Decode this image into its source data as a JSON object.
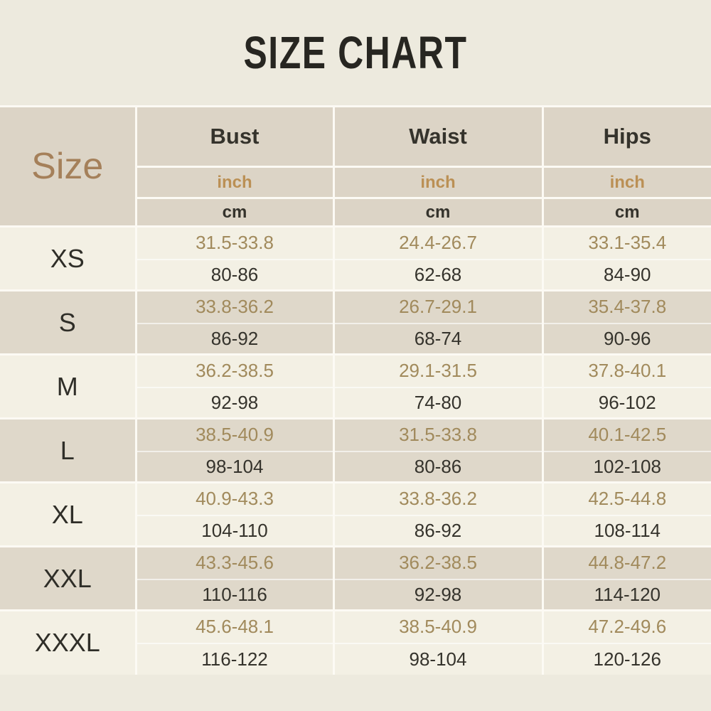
{
  "title": "SIZE CHART",
  "table": {
    "corner_label": "Size",
    "measurements": {
      "bust": "Bust",
      "waist": "Waist",
      "hips": "Hips"
    },
    "units": {
      "inch": "inch",
      "cm": "cm"
    },
    "rows": [
      {
        "size": "XS",
        "bust": {
          "inch": "31.5-33.8",
          "cm": "80-86"
        },
        "waist": {
          "inch": "24.4-26.7",
          "cm": "62-68"
        },
        "hips": {
          "inch": "33.1-35.4",
          "cm": "84-90"
        }
      },
      {
        "size": "S",
        "bust": {
          "inch": "33.8-36.2",
          "cm": "86-92"
        },
        "waist": {
          "inch": "26.7-29.1",
          "cm": "68-74"
        },
        "hips": {
          "inch": "35.4-37.8",
          "cm": "90-96"
        }
      },
      {
        "size": "M",
        "bust": {
          "inch": "36.2-38.5",
          "cm": "92-98"
        },
        "waist": {
          "inch": "29.1-31.5",
          "cm": "74-80"
        },
        "hips": {
          "inch": "37.8-40.1",
          "cm": "96-102"
        }
      },
      {
        "size": "L",
        "bust": {
          "inch": "38.5-40.9",
          "cm": "98-104"
        },
        "waist": {
          "inch": "31.5-33.8",
          "cm": "80-86"
        },
        "hips": {
          "inch": "40.1-42.5",
          "cm": "102-108"
        }
      },
      {
        "size": "XL",
        "bust": {
          "inch": "40.9-43.3",
          "cm": "104-110"
        },
        "waist": {
          "inch": "33.8-36.2",
          "cm": "86-92"
        },
        "hips": {
          "inch": "42.5-44.8",
          "cm": "108-114"
        }
      },
      {
        "size": "XXL",
        "bust": {
          "inch": "43.3-45.6",
          "cm": "110-116"
        },
        "waist": {
          "inch": "36.2-38.5",
          "cm": "92-98"
        },
        "hips": {
          "inch": "44.8-47.2",
          "cm": "114-120"
        }
      },
      {
        "size": "XXXL",
        "bust": {
          "inch": "45.6-48.1",
          "cm": "116-122"
        },
        "waist": {
          "inch": "38.5-40.9",
          "cm": "98-104"
        },
        "hips": {
          "inch": "47.2-49.6",
          "cm": "120-126"
        }
      }
    ]
  },
  "chart_data": {
    "type": "table",
    "title": "SIZE CHART",
    "categories": [
      "XS",
      "S",
      "M",
      "L",
      "XL",
      "XXL",
      "XXXL"
    ],
    "series": [
      {
        "name": "Bust (inch)",
        "values": [
          "31.5-33.8",
          "33.8-36.2",
          "36.2-38.5",
          "38.5-40.9",
          "40.9-43.3",
          "43.3-45.6",
          "45.6-48.1"
        ]
      },
      {
        "name": "Bust (cm)",
        "values": [
          "80-86",
          "86-92",
          "92-98",
          "98-104",
          "104-110",
          "110-116",
          "116-122"
        ]
      },
      {
        "name": "Waist (inch)",
        "values": [
          "24.4-26.7",
          "26.7-29.1",
          "29.1-31.5",
          "31.5-33.8",
          "33.8-36.2",
          "36.2-38.5",
          "38.5-40.9"
        ]
      },
      {
        "name": "Waist (cm)",
        "values": [
          "62-68",
          "68-74",
          "74-80",
          "80-86",
          "86-92",
          "92-98",
          "98-104"
        ]
      },
      {
        "name": "Hips (inch)",
        "values": [
          "33.1-35.4",
          "35.4-37.8",
          "37.8-40.1",
          "40.1-42.5",
          "42.5-44.8",
          "44.8-47.2",
          "47.2-49.6"
        ]
      },
      {
        "name": "Hips (cm)",
        "values": [
          "84-90",
          "90-96",
          "96-102",
          "102-108",
          "108-114",
          "114-120",
          "120-126"
        ]
      }
    ]
  },
  "colors": {
    "page_bg": "#edeade",
    "header_bg": "#dcd4c6",
    "row_light_bg": "#f3f0e4",
    "row_dark_bg": "#dfd8ca",
    "border": "#fcfaf4",
    "title_text": "#272621",
    "size_corner_text": "#a5805a",
    "inch_header_text": "#bb9055",
    "inch_value_text": "#a18a5c",
    "dark_text": "#35332c"
  }
}
